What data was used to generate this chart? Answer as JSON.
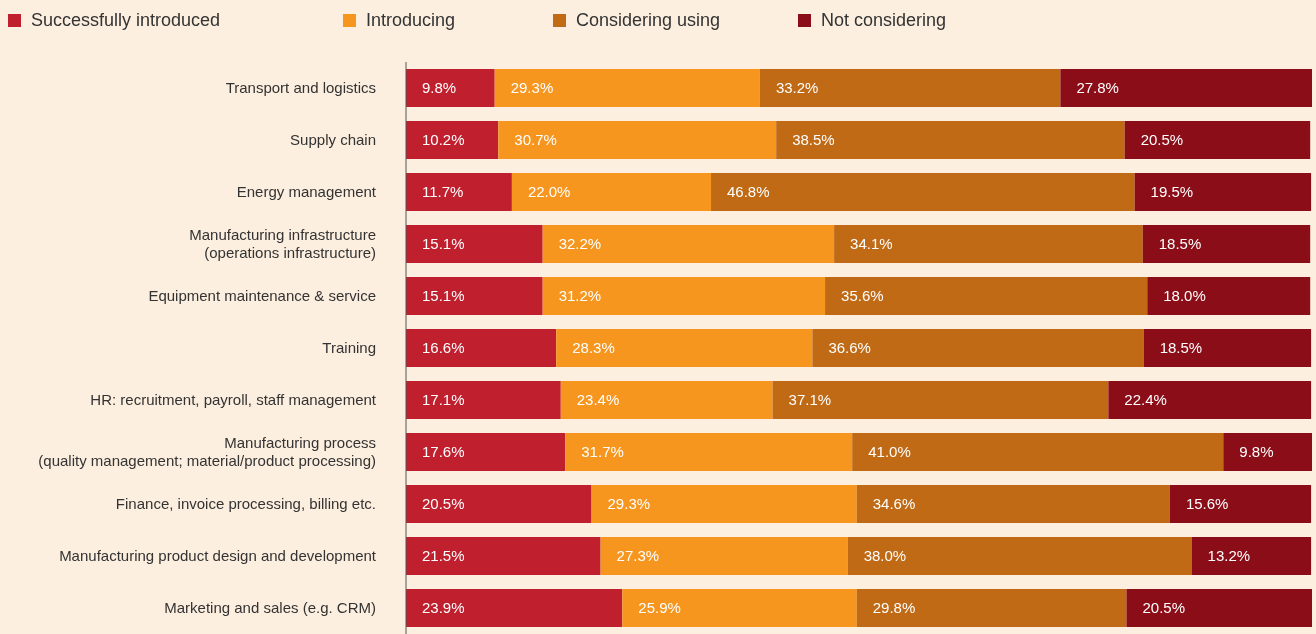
{
  "chart_data": {
    "type": "bar",
    "orientation": "horizontal",
    "stacked": true,
    "legend": "top left",
    "categories": [
      "Transport and logistics",
      "Supply chain",
      "Energy management",
      "Manufacturing infrastructure (operations infrastructure)",
      "Equipment maintenance & service",
      "Training",
      "HR: recruitment, payroll, staff management",
      "Manufacturing process (quality management; material/product processing)",
      "Finance, invoice processing, billing etc.",
      "Manufacturing product design and development",
      "Marketing and sales (e.g. CRM)"
    ],
    "series": [
      {
        "name": "Successfully introduced",
        "color": "#c01f2e",
        "values": [
          9.8,
          10.2,
          11.7,
          15.1,
          15.1,
          16.6,
          17.1,
          17.6,
          20.5,
          21.5,
          23.9
        ],
        "value_labels": [
          "9.8%",
          "10.2%",
          "11.7%",
          "15.1%",
          "15.1%",
          "16.6%",
          "17.1%",
          "17.6%",
          "20.5%",
          "21.5%",
          "23.9%"
        ]
      },
      {
        "name": "Introducing",
        "color": "#f6961f",
        "values": [
          29.3,
          30.7,
          22.0,
          32.2,
          31.2,
          28.3,
          23.4,
          31.7,
          29.3,
          27.3,
          25.9
        ],
        "value_labels": [
          "29.3%",
          "30.7%",
          "22.0%",
          "32.2%",
          "31.2%",
          "28.3%",
          "23.4%",
          "31.7%",
          "29.3%",
          "27.3%",
          "25.9%"
        ]
      },
      {
        "name": "Considering using",
        "color": "#c06a15",
        "values": [
          33.2,
          38.5,
          46.8,
          34.1,
          35.6,
          36.6,
          37.1,
          41.0,
          34.6,
          38.0,
          29.8
        ],
        "value_labels": [
          "33.2%",
          "38.5%",
          "46.8%",
          "34.1%",
          "35.6%",
          "36.6%",
          "37.1%",
          "41.0%",
          "34.6%",
          "38.0%",
          "29.8%"
        ]
      },
      {
        "name": "Not considering",
        "color": "#8b0d18",
        "values": [
          27.8,
          20.5,
          19.5,
          18.5,
          18.0,
          18.5,
          22.4,
          9.8,
          15.6,
          13.2,
          20.5
        ],
        "value_labels": [
          "27.8%",
          "20.5%",
          "19.5%",
          "18.5%",
          "18.0%",
          "18.5%",
          "22.4%",
          "9.8%",
          "15.6%",
          "13.2%",
          "20.5%"
        ]
      }
    ]
  }
}
